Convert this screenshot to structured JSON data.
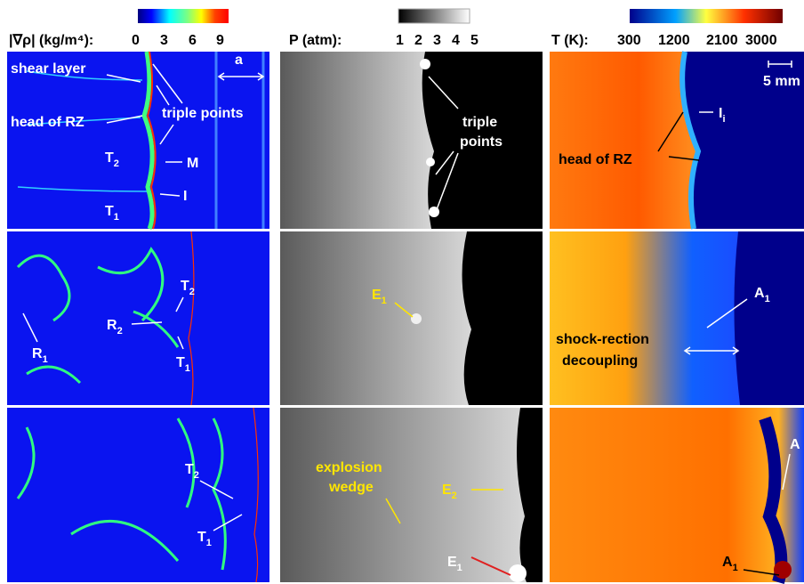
{
  "colorbars": [
    {
      "label": "|∇ρ| (kg/m⁴):",
      "ticks": [
        "0",
        "3",
        "6",
        "9"
      ]
    },
    {
      "label": "P (atm):",
      "ticks": [
        "1",
        "2",
        "3",
        "4",
        "5"
      ]
    },
    {
      "label": "T (K):",
      "ticks": [
        "300",
        "1200",
        "2100",
        "3000"
      ]
    }
  ],
  "panels": [
    {
      "annotations": [
        {
          "text": "shear layer"
        },
        {
          "text": "head of RZ"
        },
        {
          "text": "triple points"
        },
        {
          "text": "a"
        },
        {
          "text": "T",
          "sub": "2"
        },
        {
          "text": "M"
        },
        {
          "text": "I"
        },
        {
          "text": "T",
          "sub": "1"
        }
      ]
    },
    {
      "annotations": [
        {
          "text": "triple"
        },
        {
          "text": "points"
        }
      ]
    },
    {
      "annotations": [
        {
          "text": "5 mm"
        },
        {
          "text": "I",
          "sub": "i"
        },
        {
          "text": "head of RZ"
        }
      ]
    },
    {
      "annotations": [
        {
          "text": "T",
          "sub": "2"
        },
        {
          "text": "R",
          "sub": "2"
        },
        {
          "text": "T",
          "sub": "1"
        },
        {
          "text": "R",
          "sub": "1"
        }
      ]
    },
    {
      "annotations": [
        {
          "text": "E",
          "sub": "1"
        }
      ]
    },
    {
      "annotations": [
        {
          "text": "A",
          "sub": "1"
        },
        {
          "text": "shock-rection"
        },
        {
          "text": "decoupling"
        }
      ]
    },
    {
      "annotations": [
        {
          "text": "T",
          "sub": "2"
        },
        {
          "text": "T",
          "sub": "1"
        }
      ]
    },
    {
      "annotations": [
        {
          "text": "explosion"
        },
        {
          "text": "wedge"
        },
        {
          "text": "E",
          "sub": "2"
        },
        {
          "text": "E",
          "sub": "1"
        }
      ]
    },
    {
      "annotations": [
        {
          "text": "A"
        },
        {
          "text": "A",
          "sub": "1"
        }
      ]
    }
  ]
}
